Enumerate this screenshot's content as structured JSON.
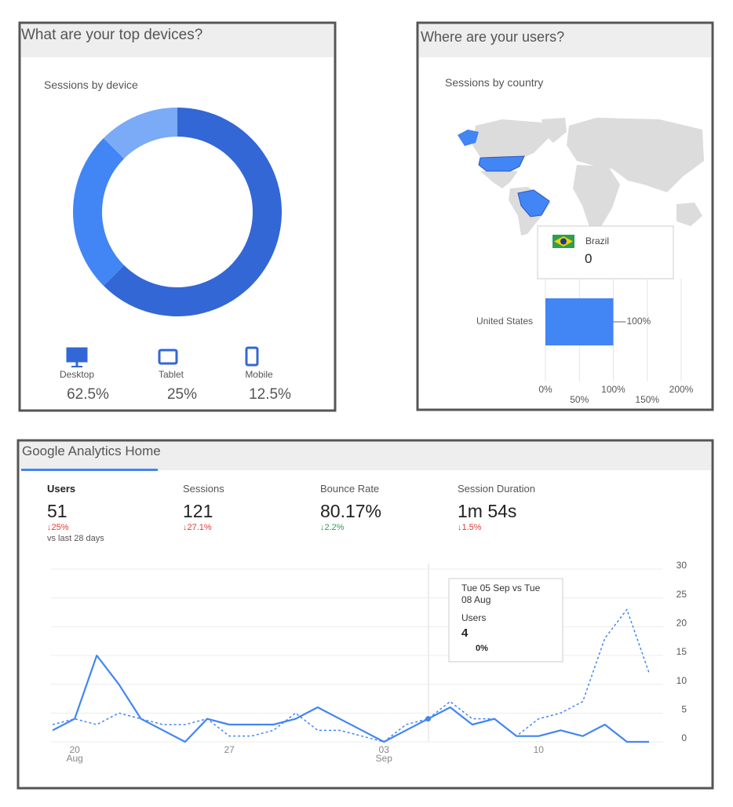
{
  "panels": [
    {
      "title": "What are your top devices?"
    },
    {
      "title": "Where are your users?"
    },
    {
      "title": "Google Analytics Home"
    }
  ],
  "metrics": [
    {
      "label": "Users",
      "value": "51",
      "change": "↓25%",
      "change_color": "#e53935"
    },
    {
      "label": "Sessions",
      "value": "121",
      "change": "↓27.1%",
      "change_color": "#e53935"
    },
    {
      "label": "Bounce Rate",
      "value": "80.17%",
      "change": "↓2.2%",
      "change_color": "#2e9e4f"
    },
    {
      "label": "Session Duration",
      "value": "1m 54s",
      "change": "↓1.5%",
      "change_color": "#e53935"
    }
  ],
  "comparison": "vs last 28 days",
  "chart_data": [
    {
      "type": "pie",
      "donut": true,
      "title": "Sessions by device",
      "categories": [
        "Desktop",
        "Tablet",
        "Mobile"
      ],
      "values": [
        62.5,
        25,
        12.5
      ],
      "value_labels": [
        "62.5%",
        "25%",
        "12.5%"
      ],
      "colors": [
        "#3367d6",
        "#4285f4",
        "#7baaf7"
      ]
    },
    {
      "type": "bar",
      "orientation": "horizontal",
      "title": "Sessions by country",
      "categories": [
        "United States"
      ],
      "values": [
        100
      ],
      "value_labels": [
        "100%"
      ],
      "color": "#4285f4",
      "xlim": [
        0,
        200
      ],
      "xticks": [
        {
          "value": 0,
          "label": "0%"
        },
        {
          "value": 50,
          "label": "50%"
        },
        {
          "value": 100,
          "label": "100%"
        },
        {
          "value": 150,
          "label": "150%"
        },
        {
          "value": 200,
          "label": "200%"
        }
      ],
      "grid": true,
      "tooltip": {
        "label": "Brazil",
        "value": 0
      }
    },
    {
      "type": "line",
      "categories": [
        null,
        "20 Aug",
        null,
        null,
        null,
        null,
        null,
        null,
        "27",
        null,
        null,
        null,
        null,
        null,
        null,
        "03 Sep",
        null,
        null,
        null,
        null,
        null,
        null,
        "10",
        null,
        null,
        null,
        null,
        null
      ],
      "series": [
        {
          "color": "#4285f4",
          "dashed": false,
          "values": [
            2,
            4,
            15,
            10,
            4,
            2,
            0,
            4,
            3,
            3,
            3,
            4,
            6,
            4,
            2,
            0,
            2,
            4,
            6,
            3,
            4,
            1,
            1,
            2,
            1,
            3,
            0,
            0
          ]
        },
        {
          "color": "#4285f4",
          "dashed": true,
          "values": [
            3,
            4,
            3,
            5,
            4,
            3,
            3,
            4,
            1,
            1,
            2,
            5,
            2,
            2,
            1,
            0,
            3,
            4,
            7,
            4,
            4,
            1,
            4,
            5,
            7,
            18,
            23,
            12
          ]
        }
      ],
      "ylim": [
        0,
        30
      ],
      "yticks": [
        0,
        5,
        10,
        15,
        20,
        25,
        30
      ],
      "grid": true,
      "tooltip": {
        "title": "Tue 05 Sep vs Tue 08 Aug",
        "metric": "Users",
        "value": 4,
        "change": "0%"
      }
    }
  ]
}
